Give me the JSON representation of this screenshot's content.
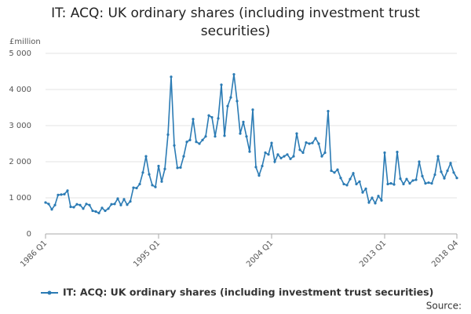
{
  "chart_data": {
    "type": "line",
    "title": "IT: ACQ: UK ordinary shares (including investment trust securities)",
    "y_label": "£million",
    "source": "Source:",
    "categories": [
      "1986 Q1",
      null,
      null,
      null,
      null,
      null,
      null,
      null,
      null,
      null,
      null,
      null,
      null,
      null,
      null,
      null,
      null,
      null,
      null,
      null,
      null,
      null,
      null,
      null,
      null,
      null,
      null,
      null,
      null,
      null,
      null,
      null,
      null,
      null,
      null,
      null,
      "1995 Q1",
      null,
      null,
      null,
      null,
      null,
      null,
      null,
      null,
      null,
      null,
      null,
      null,
      null,
      null,
      null,
      null,
      null,
      null,
      null,
      null,
      null,
      null,
      null,
      null,
      null,
      null,
      null,
      null,
      null,
      null,
      null,
      null,
      null,
      null,
      null,
      "2004 Q1",
      null,
      null,
      null,
      null,
      null,
      null,
      null,
      null,
      null,
      null,
      null,
      null,
      null,
      null,
      null,
      null,
      null,
      null,
      null,
      null,
      null,
      null,
      null,
      null,
      null,
      null,
      null,
      null,
      null,
      null,
      null,
      null,
      null,
      null,
      null,
      "2013 Q1",
      null,
      null,
      null,
      null,
      null,
      null,
      null,
      null,
      null,
      null,
      null,
      null,
      null,
      null,
      null,
      null,
      null,
      null,
      null,
      null,
      null,
      null,
      "2018 Q4"
    ],
    "series": [
      {
        "name": "IT: ACQ: UK ordinary shares (including investment trust securities)",
        "color": "#2b7bb4",
        "values": [
          870,
          830,
          680,
          800,
          1080,
          1090,
          1100,
          1200,
          750,
          740,
          820,
          800,
          700,
          830,
          800,
          640,
          620,
          580,
          720,
          640,
          700,
          820,
          830,
          980,
          800,
          960,
          810,
          900,
          1280,
          1270,
          1380,
          1700,
          2150,
          1650,
          1350,
          1300,
          1880,
          1450,
          1800,
          2750,
          4350,
          2450,
          1830,
          1840,
          2150,
          2550,
          2600,
          3180,
          2550,
          2500,
          2600,
          2700,
          3280,
          3230,
          2700,
          3200,
          4130,
          2720,
          3540,
          3780,
          4420,
          3680,
          2780,
          3100,
          2700,
          2280,
          3440,
          1850,
          1620,
          1880,
          2250,
          2200,
          2520,
          2000,
          2200,
          2100,
          2150,
          2200,
          2080,
          2150,
          2780,
          2330,
          2250,
          2530,
          2500,
          2520,
          2650,
          2500,
          2150,
          2250,
          3400,
          1750,
          1700,
          1780,
          1550,
          1380,
          1350,
          1520,
          1680,
          1380,
          1450,
          1150,
          1250,
          870,
          1000,
          850,
          1050,
          930,
          2250,
          1380,
          1400,
          1370,
          2270,
          1530,
          1380,
          1520,
          1400,
          1480,
          1500,
          2000,
          1600,
          1400,
          1420,
          1400,
          1640,
          2150,
          1720,
          1540,
          1750,
          1960,
          1700,
          1550
        ]
      }
    ],
    "ylim": [
      0,
      5000
    ],
    "yticks": [
      0,
      {
        "value": 1000,
        "label": "1 000"
      },
      {
        "value": 2000,
        "label": "2 000"
      },
      {
        "value": 3000,
        "label": "3 000"
      },
      {
        "value": 4000,
        "label": "4 000"
      },
      {
        "value": 5000,
        "label": "5 000"
      }
    ],
    "grid": true
  }
}
